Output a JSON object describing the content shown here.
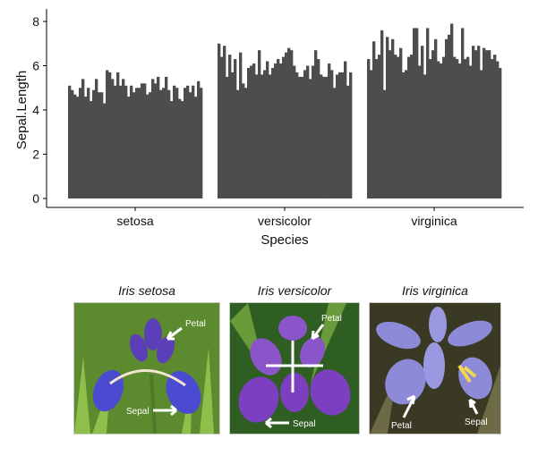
{
  "chart_data": {
    "type": "bar",
    "title": "",
    "xlabel": "Species",
    "ylabel": "Sepal.Length",
    "ylim": [
      0,
      8.3
    ],
    "yticks": [
      0,
      2,
      4,
      6,
      8
    ],
    "grid": false,
    "bar_color": "#4d4d4d",
    "categories": [
      "setosa",
      "versicolor",
      "virginica"
    ],
    "groups": [
      {
        "name": "setosa",
        "values": [
          5.1,
          4.9,
          4.7,
          4.6,
          5.0,
          5.4,
          4.6,
          5.0,
          4.4,
          4.9,
          5.4,
          4.8,
          4.8,
          4.3,
          5.8,
          5.7,
          5.4,
          5.1,
          5.7,
          5.1,
          5.4,
          5.1,
          4.6,
          5.1,
          4.8,
          5.0,
          5.0,
          5.2,
          5.2,
          4.7,
          4.8,
          5.4,
          5.2,
          5.5,
          4.9,
          5.0,
          5.5,
          4.9,
          4.4,
          5.1,
          5.0,
          4.5,
          4.4,
          5.0,
          5.1,
          4.8,
          5.1,
          4.6,
          5.3,
          5.0
        ]
      },
      {
        "name": "versicolor",
        "values": [
          7.0,
          6.4,
          6.9,
          5.5,
          6.5,
          5.7,
          6.3,
          4.9,
          6.6,
          5.2,
          5.0,
          5.9,
          6.0,
          6.1,
          5.6,
          6.7,
          5.6,
          5.8,
          6.2,
          5.6,
          5.9,
          6.1,
          6.3,
          6.1,
          6.4,
          6.6,
          6.8,
          6.7,
          6.0,
          5.7,
          5.5,
          5.5,
          5.8,
          6.0,
          5.4,
          6.0,
          6.7,
          6.3,
          5.6,
          5.5,
          5.5,
          6.1,
          5.8,
          5.0,
          5.6,
          5.7,
          5.7,
          6.2,
          5.1,
          5.7
        ]
      },
      {
        "name": "virginica",
        "values": [
          6.3,
          5.8,
          7.1,
          6.3,
          6.5,
          7.6,
          4.9,
          7.3,
          6.7,
          7.2,
          6.5,
          6.4,
          6.8,
          5.7,
          5.8,
          6.4,
          6.5,
          7.7,
          7.7,
          6.0,
          6.9,
          5.6,
          7.7,
          6.3,
          6.7,
          7.2,
          6.2,
          6.1,
          6.4,
          7.2,
          7.4,
          7.9,
          6.4,
          6.3,
          6.1,
          7.7,
          6.3,
          6.4,
          6.0,
          6.9,
          6.7,
          6.9,
          5.8,
          6.8,
          6.7,
          6.7,
          6.3,
          6.5,
          6.2,
          5.9
        ]
      }
    ]
  },
  "photos": [
    {
      "title": "Iris setosa",
      "labels": {
        "petal": "Petal",
        "sepal": "Sepal"
      },
      "colors": {
        "background": "#5c8a2e",
        "background_light": "#8fbf4a",
        "petal": "#5a3fb8",
        "sepal": "#4a4bd0",
        "vein": "#f2e6d0"
      }
    },
    {
      "title": "Iris versicolor",
      "labels": {
        "petal": "Petal",
        "sepal": "Sepal"
      },
      "colors": {
        "background": "#2f5e22",
        "background_light": "#6a9b3a",
        "petal": "#8a55c8",
        "sepal": "#7b3fc0",
        "vein": "#ffffff"
      }
    },
    {
      "title": "Iris virginica",
      "labels": {
        "petal": "Petal",
        "sepal": "Sepal"
      },
      "colors": {
        "background": "#3a3a24",
        "background_light": "#6d6b45",
        "petal": "#9a98e0",
        "sepal": "#8d8ad8",
        "vein": "#f2d84a"
      }
    }
  ]
}
